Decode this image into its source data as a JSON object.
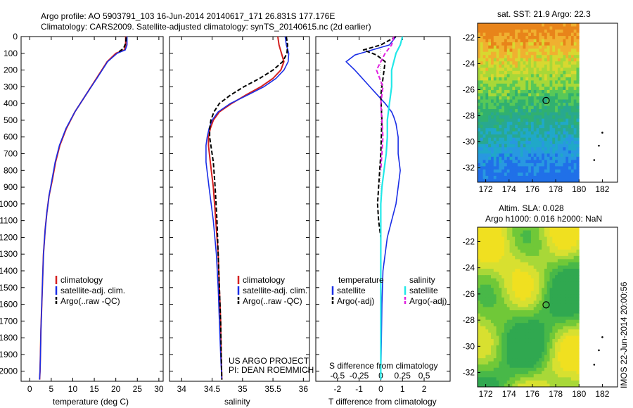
{
  "header": {
    "title_line1": "Argo profile: AO 5903791_103 16-Jun-2014 20140617_171 26.831S 177.176E",
    "title_line2": "Climatology: CARS2009. Satellite-adjusted climatology: synTS_20140615.nc (2d earlier)"
  },
  "credits": {
    "project": "US ARGO PROJECT",
    "pi": "PI: DEAN ROEMMICH",
    "imos": "IMOS 22-Jun-2014 20:00:56"
  },
  "colors": {
    "climatology": "#d42020",
    "satellite": "#1a2ee6",
    "argo": "#000000",
    "sal_satellite": "#22e8e8",
    "sal_argo": "#e020e0"
  },
  "chart_data": [
    {
      "type": "line",
      "xlabel": "temperature (deg C)",
      "ylabel": "",
      "xlim": [
        -2,
        31
      ],
      "ylim": [
        0,
        2060
      ],
      "xticks": [
        "0",
        "5",
        "10",
        "15",
        "20",
        "25",
        "30"
      ],
      "yticks": [
        "0",
        "100",
        "200",
        "300",
        "400",
        "500",
        "600",
        "700",
        "800",
        "900",
        "1000",
        "1100",
        "1200",
        "1300",
        "1400",
        "1500",
        "1600",
        "1700",
        "1800",
        "1900",
        "2000"
      ],
      "legend": [
        "climatology",
        "satellite-adj. clim.",
        "Argo(..raw -QC)"
      ],
      "series": [
        {
          "name": "climatology",
          "style": "red",
          "x": [
            22.3,
            22.3,
            22.0,
            20.0,
            18.0,
            15.5,
            13.0,
            10.5,
            8.5,
            7.0,
            6.0,
            5.3,
            4.5,
            4.0,
            3.6,
            3.2,
            3.0,
            2.8,
            2.6,
            2.5,
            2.4,
            2.3
          ],
          "y": [
            0,
            50,
            80,
            100,
            150,
            250,
            350,
            450,
            550,
            650,
            750,
            850,
            950,
            1050,
            1150,
            1300,
            1450,
            1600,
            1750,
            1900,
            2000,
            2050
          ]
        },
        {
          "name": "satellite-adj. clim.",
          "style": "blue",
          "x": [
            22.6,
            22.6,
            22.2,
            20.3,
            18.1,
            15.6,
            13.0,
            10.5,
            8.4,
            6.9,
            5.9,
            5.2,
            4.5,
            4.0,
            3.6,
            3.2,
            3.0,
            2.8,
            2.6,
            2.5,
            2.4,
            2.3
          ],
          "y": [
            0,
            50,
            80,
            100,
            150,
            250,
            350,
            450,
            550,
            650,
            750,
            850,
            950,
            1050,
            1150,
            1300,
            1450,
            1600,
            1750,
            1900,
            2000,
            2050
          ]
        },
        {
          "name": "Argo(..raw -QC)",
          "style": "black-dash",
          "x": [
            22.4,
            22.3,
            21.8,
            20.5
          ],
          "y": [
            5,
            40,
            70,
            95
          ]
        }
      ]
    },
    {
      "type": "line",
      "xlabel": "salinity",
      "xlim": [
        33.8,
        36.1
      ],
      "ylim": [
        0,
        2060
      ],
      "xticks": [
        "34",
        "34.5",
        "35",
        "35.5",
        "36"
      ],
      "legend": [
        "climatology",
        "satellite-adj. clim.",
        "Argo(..raw -QC)"
      ],
      "series": [
        {
          "name": "climatology",
          "style": "red",
          "x": [
            35.58,
            35.6,
            35.64,
            35.68,
            35.63,
            35.5,
            35.3,
            35.05,
            34.82,
            34.62,
            34.52,
            34.47,
            34.44,
            34.44,
            34.47,
            34.52,
            34.56,
            34.6,
            34.62,
            34.64,
            34.65,
            34.66
          ],
          "y": [
            0,
            50,
            100,
            150,
            200,
            250,
            300,
            350,
            400,
            450,
            500,
            550,
            600,
            650,
            750,
            900,
            1100,
            1300,
            1500,
            1700,
            1900,
            2050
          ]
        },
        {
          "name": "satellite-adj. clim.",
          "style": "blue",
          "x": [
            35.7,
            35.72,
            35.76,
            35.75,
            35.68,
            35.55,
            35.35,
            35.08,
            34.8,
            34.6,
            34.5,
            34.45,
            34.42,
            34.4,
            34.4,
            34.45,
            34.52,
            34.57,
            34.6,
            34.62,
            34.64,
            34.66
          ],
          "y": [
            0,
            50,
            100,
            150,
            200,
            250,
            300,
            350,
            400,
            450,
            500,
            550,
            600,
            650,
            750,
            900,
            1100,
            1300,
            1500,
            1700,
            1900,
            2050
          ]
        },
        {
          "name": "Argo(..raw -QC)",
          "style": "black-dash",
          "x": [
            35.72,
            35.74,
            35.73,
            35.66,
            35.5,
            35.28,
            35.02,
            34.8,
            34.62,
            34.53,
            34.48,
            34.46,
            34.46,
            34.48,
            34.52,
            34.55,
            34.58,
            34.6,
            34.62,
            34.64,
            34.65,
            34.66
          ],
          "y": [
            0,
            50,
            100,
            150,
            200,
            250,
            300,
            350,
            400,
            450,
            500,
            550,
            600,
            650,
            750,
            900,
            1100,
            1300,
            1500,
            1700,
            1900,
            2050
          ]
        }
      ]
    },
    {
      "type": "line",
      "xlabel": "T difference from climatology",
      "xlabel_top": "S difference from climatology",
      "xlim": [
        -3,
        3.2
      ],
      "ylim": [
        0,
        2060
      ],
      "xticks": [
        "-2",
        "-1",
        "0",
        "1",
        "2"
      ],
      "xticks_top": [
        "-0.5",
        "-0.25",
        "0",
        "0.25",
        "0.5"
      ],
      "legend_headers": [
        "temperature",
        "salinity"
      ],
      "legend": [
        "satellite",
        "Argo(-adj)",
        "satellite",
        "Argo(-adj)"
      ],
      "series": [
        {
          "name": "satellite",
          "group": "temperature",
          "style": "blue",
          "x": [
            0.7,
            0.4,
            -0.4,
            -1.2,
            -1.6,
            -1.2,
            -0.5,
            0.2,
            0.5,
            0.6,
            0.7,
            0.8,
            0.8,
            0.9,
            0.8,
            0.7,
            0.5,
            0.3,
            0.1,
            0.05,
            0.0
          ],
          "y": [
            0,
            50,
            80,
            110,
            150,
            200,
            300,
            400,
            450,
            480,
            520,
            600,
            700,
            800,
            900,
            1000,
            1100,
            1200,
            1400,
            1600,
            2050
          ]
        },
        {
          "name": "Argo(-adj)",
          "group": "temperature",
          "style": "black-dash",
          "x": [
            0.7,
            0.0,
            -0.8,
            -0.2,
            0.2,
            0.1,
            0.0,
            0.05,
            0.0,
            -0.1,
            -0.15,
            -0.1,
            0.0
          ],
          "y": [
            0,
            50,
            80,
            110,
            150,
            250,
            350,
            500,
            700,
            900,
            1000,
            1100,
            1200
          ]
        },
        {
          "name": "satellite",
          "group": "salinity",
          "style": "cyan",
          "x": [
            1.0,
            0.9,
            0.7,
            0.5,
            0.5,
            0.4,
            0.3,
            0.3,
            0.25,
            0.15,
            0.05,
            0.0,
            0.0,
            0.0
          ],
          "y": [
            0,
            50,
            100,
            200,
            300,
            400,
            500,
            600,
            700,
            800,
            900,
            1000,
            1300,
            2050
          ]
        },
        {
          "name": "Argo(-adj)",
          "group": "salinity",
          "style": "magenta-dash",
          "x": [
            0.6,
            0.5,
            0.2,
            -0.2,
            0.1,
            0.0,
            0.05,
            0.1,
            0.05,
            0.0
          ],
          "y": [
            0,
            50,
            100,
            200,
            300,
            400,
            500,
            600,
            700,
            800
          ]
        }
      ]
    },
    {
      "type": "heatmap",
      "title": "sat. SST: 21.9  Argo: 22.3",
      "xlim": [
        171.3,
        183.3
      ],
      "ylim": [
        -33.1,
        -20.9
      ],
      "xticks": [
        "172",
        "174",
        "176",
        "178",
        "180",
        "182"
      ],
      "yticks": [
        "-22",
        "-24",
        "-26",
        "-28",
        "-30",
        "-32"
      ],
      "float_position": {
        "lon": 177.176,
        "lat": -26.831
      }
    },
    {
      "type": "heatmap",
      "title_line1": "Altim. SLA: 0.028",
      "title_line2": "Argo h1000: 0.016 h2000: NaN",
      "xlim": [
        171.3,
        183.3
      ],
      "ylim": [
        -33.1,
        -20.9
      ],
      "xticks": [
        "172",
        "174",
        "176",
        "178",
        "180",
        "182"
      ],
      "yticks": [
        "-22",
        "-24",
        "-26",
        "-28",
        "-30",
        "-32"
      ],
      "float_position": {
        "lon": 177.176,
        "lat": -26.831
      }
    }
  ]
}
